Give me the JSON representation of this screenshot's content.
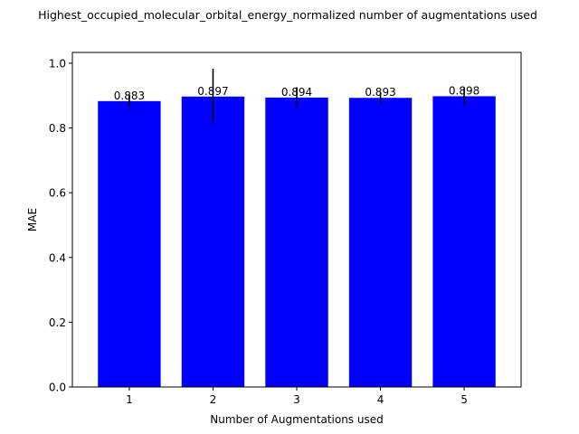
{
  "chart_data": {
    "type": "bar",
    "title": "Highest_occupied_molecular_orbital_energy_normalized number of augmentations used",
    "xlabel": "Number of Augmentations used",
    "ylabel": "MAE",
    "categories": [
      "1",
      "2",
      "3",
      "4",
      "5"
    ],
    "values": [
      0.883,
      0.897,
      0.894,
      0.893,
      0.898
    ],
    "value_labels": [
      "0.883",
      "0.897",
      "0.894",
      "0.893",
      "0.898"
    ],
    "error_low": [
      0.863,
      0.815,
      0.862,
      0.875,
      0.87
    ],
    "error_high": [
      0.903,
      0.983,
      0.926,
      0.911,
      0.926
    ],
    "ylim": [
      0,
      1.0333
    ],
    "yticks": [
      0.0,
      0.2,
      0.4,
      0.6,
      0.8,
      1.0
    ],
    "ytick_labels": [
      "0.0",
      "0.2",
      "0.4",
      "0.6",
      "0.8",
      "1.0"
    ],
    "bar_color": "#0000ff",
    "error_color": "#000000",
    "grid": false,
    "legend": "none"
  }
}
